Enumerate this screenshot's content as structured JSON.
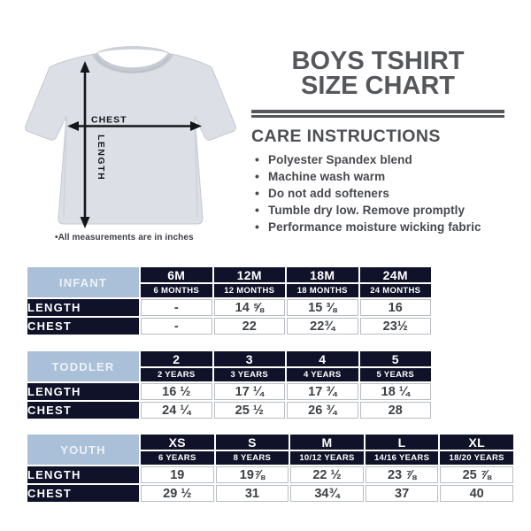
{
  "title": {
    "line1": "BOYS TSHIRT",
    "line2": "SIZE CHART"
  },
  "care": {
    "heading": "CARE INSTRUCTIONS",
    "items": [
      "Polyester Spandex blend",
      "Machine wash warm",
      "Do not add softeners",
      "Tumble dry low. Remove promptly",
      "Performance moisture wicking fabric"
    ]
  },
  "diagram": {
    "chest_label": "CHEST",
    "length_label": "LENGTH",
    "footnote": "•All measurements are in inches"
  },
  "tables": [
    {
      "group": "INFANT",
      "sizes": [
        "6M",
        "12M",
        "18M",
        "24M"
      ],
      "ages": [
        "6 MONTHS",
        "12 MONTHS",
        "18 MONTHS",
        "24 MONTHS"
      ],
      "rows": [
        {
          "label": "LENGTH",
          "values": [
            "-",
            "14 ⅝",
            "15 ⅜",
            "16"
          ]
        },
        {
          "label": "CHEST",
          "values": [
            "-",
            "22",
            "22¾",
            "23½"
          ]
        }
      ]
    },
    {
      "group": "TODDLER",
      "sizes": [
        "2",
        "3",
        "4",
        "5"
      ],
      "ages": [
        "2 YEARS",
        "3 YEARS",
        "4 YEARS",
        "5 YEARS"
      ],
      "rows": [
        {
          "label": "LENGTH",
          "values": [
            "16 ½",
            "17 ¼",
            "17 ¾",
            "18 ¼"
          ]
        },
        {
          "label": "CHEST",
          "values": [
            "24 ¼",
            "25 ½",
            "26 ¾",
            "28"
          ]
        }
      ]
    },
    {
      "group": "YOUTH",
      "sizes": [
        "XS",
        "S",
        "M",
        "L",
        "XL"
      ],
      "ages": [
        "6 YEARS",
        "8 YEARS",
        "10/12 YEARS",
        "14/16 YEARS",
        "18/20 YEARS"
      ],
      "rows": [
        {
          "label": "LENGTH",
          "values": [
            "19",
            "19⅞",
            "22 ½",
            "23 ⅞",
            "25 ⅞"
          ]
        },
        {
          "label": "CHEST",
          "values": [
            "29 ½",
            "31",
            "34¾",
            "37",
            "40"
          ]
        }
      ]
    }
  ],
  "colors": {
    "table_header_navy": "#0f1228",
    "table_group_blue": "#a9c0d8",
    "title_gray": "#55575a",
    "value_text": "#3e4145",
    "shirt_gray": "#dce0e6",
    "arrow_black": "#15161a"
  }
}
